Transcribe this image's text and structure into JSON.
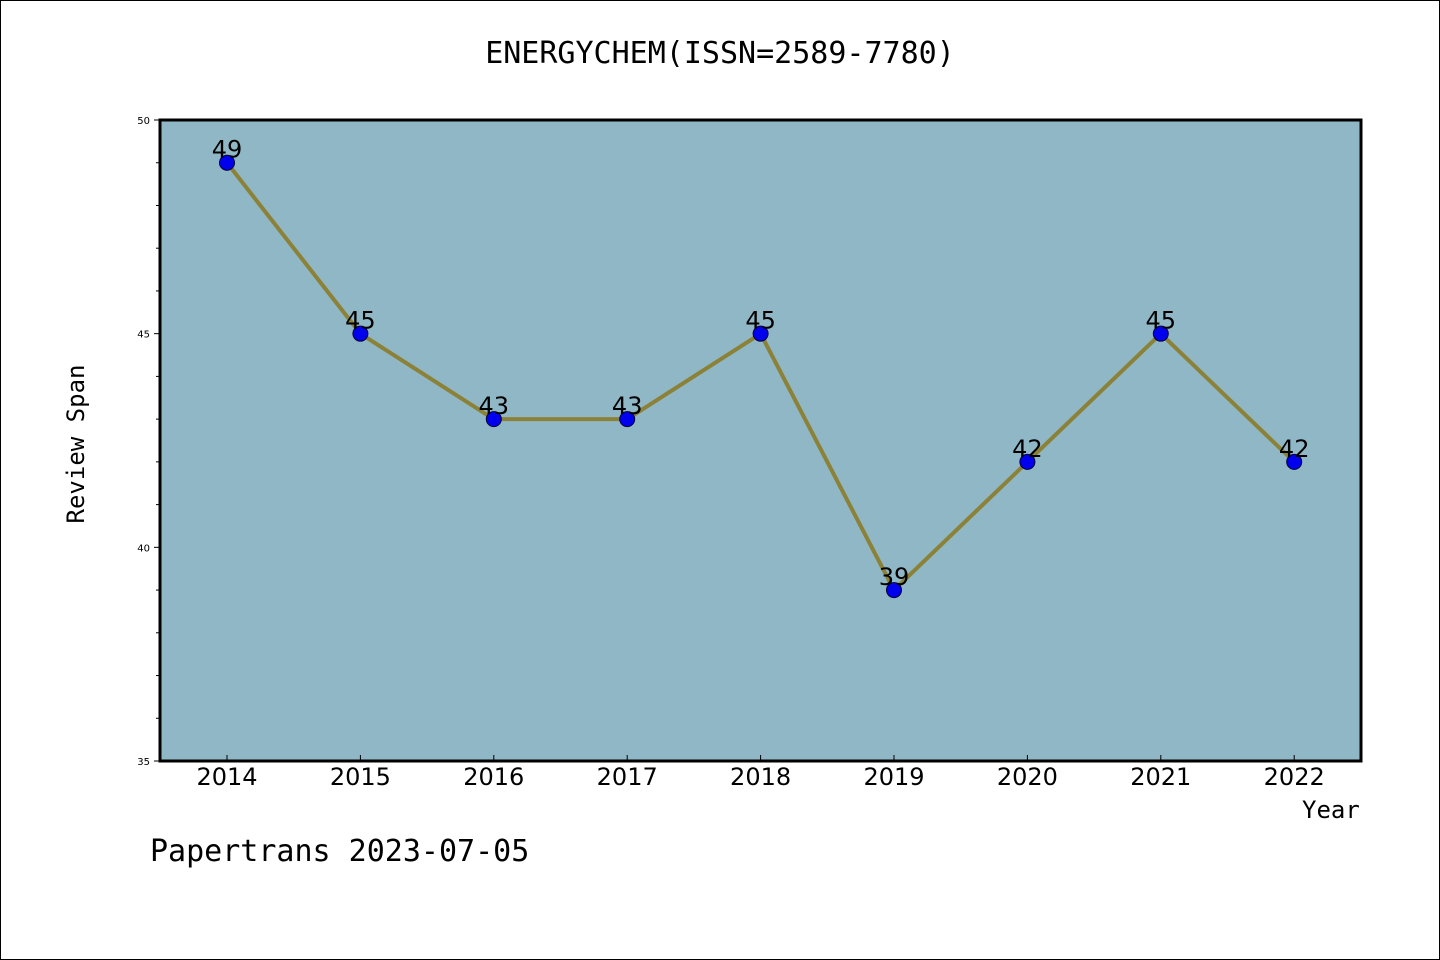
{
  "colors": {
    "plot_background": "#8fb7c6",
    "line": "#8b8237",
    "marker": "#0000ee",
    "axis": "#000000"
  },
  "footer": "Papertrans 2023-07-05",
  "chart_data": {
    "type": "line",
    "title": "ENERGYCHEM(ISSN=2589-7780)",
    "xlabel": "Year",
    "ylabel": "Review Span",
    "categories": [
      "2014",
      "2015",
      "2016",
      "2017",
      "2018",
      "2019",
      "2020",
      "2021",
      "2022"
    ],
    "values": [
      49,
      45,
      43,
      43,
      45,
      39,
      42,
      45,
      42
    ],
    "data_labels": [
      "49",
      "45",
      "43",
      "43",
      "45",
      "39",
      "42",
      "45",
      "42"
    ],
    "ylim": [
      35,
      50
    ],
    "yticks": [
      "35",
      "40",
      "45",
      "50"
    ],
    "grid": false,
    "legend": "none"
  }
}
